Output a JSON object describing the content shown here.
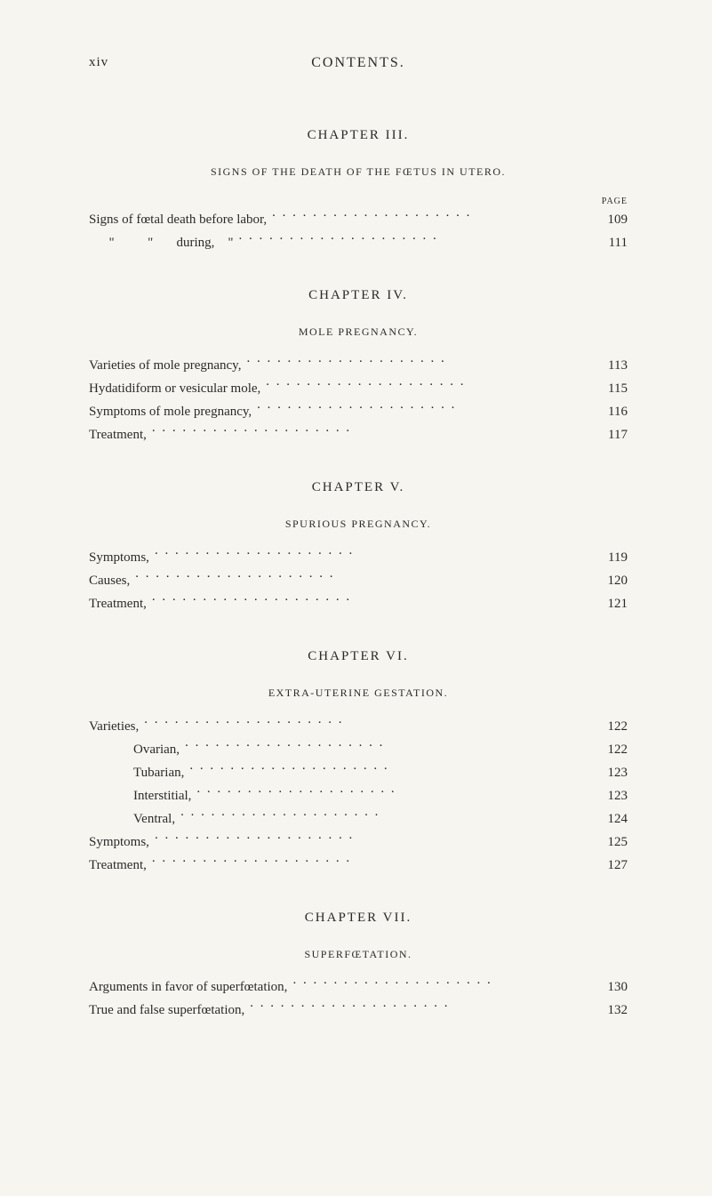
{
  "header": {
    "page_num": "xiv",
    "title": "CONTENTS."
  },
  "page_label": "PAGE",
  "chapters": [
    {
      "chapter_title": "CHAPTER III.",
      "section_title": "SIGNS OF THE DEATH OF THE FŒTUS IN UTERO.",
      "show_page_label": true,
      "entries": [
        {
          "text": "Signs of fœtal death before labor,",
          "page": "109",
          "indent": 0
        },
        {
          "text": "      \"          \"       during,    \"",
          "page": "111",
          "indent": 0
        }
      ]
    },
    {
      "chapter_title": "CHAPTER IV.",
      "section_title": "MOLE PREGNANCY.",
      "show_page_label": false,
      "entries": [
        {
          "text": "Varieties of mole pregnancy,",
          "page": "113",
          "indent": 0
        },
        {
          "text": "Hydatidiform or vesicular mole,",
          "page": "115",
          "indent": 0
        },
        {
          "text": "Symptoms of mole pregnancy,",
          "page": "116",
          "indent": 0
        },
        {
          "text": "Treatment,",
          "page": "117",
          "indent": 0
        }
      ]
    },
    {
      "chapter_title": "CHAPTER V.",
      "section_title": "SPURIOUS PREGNANCY.",
      "show_page_label": false,
      "entries": [
        {
          "text": "Symptoms,",
          "page": "119",
          "indent": 0
        },
        {
          "text": "Causes,",
          "page": "120",
          "indent": 0
        },
        {
          "text": "Treatment,",
          "page": "121",
          "indent": 0
        }
      ]
    },
    {
      "chapter_title": "CHAPTER VI.",
      "section_title": "EXTRA-UTERINE GESTATION.",
      "show_page_label": false,
      "entries": [
        {
          "text": "Varieties,",
          "page": "122",
          "indent": 0
        },
        {
          "text": "Ovarian,",
          "page": "122",
          "indent": 1
        },
        {
          "text": "Tubarian,",
          "page": "123",
          "indent": 1
        },
        {
          "text": "Interstitial,",
          "page": "123",
          "indent": 1
        },
        {
          "text": "Ventral,",
          "page": "124",
          "indent": 1
        },
        {
          "text": "Symptoms,",
          "page": "125",
          "indent": 0
        },
        {
          "text": "Treatment,",
          "page": "127",
          "indent": 0
        }
      ]
    },
    {
      "chapter_title": "CHAPTER VII.",
      "section_title": "SUPERFŒTATION.",
      "show_page_label": false,
      "entries": [
        {
          "text": "Arguments in favor of superfœtation,",
          "page": "130",
          "indent": 0
        },
        {
          "text": "True and false superfœtation,",
          "page": "132",
          "indent": 0
        }
      ]
    }
  ]
}
